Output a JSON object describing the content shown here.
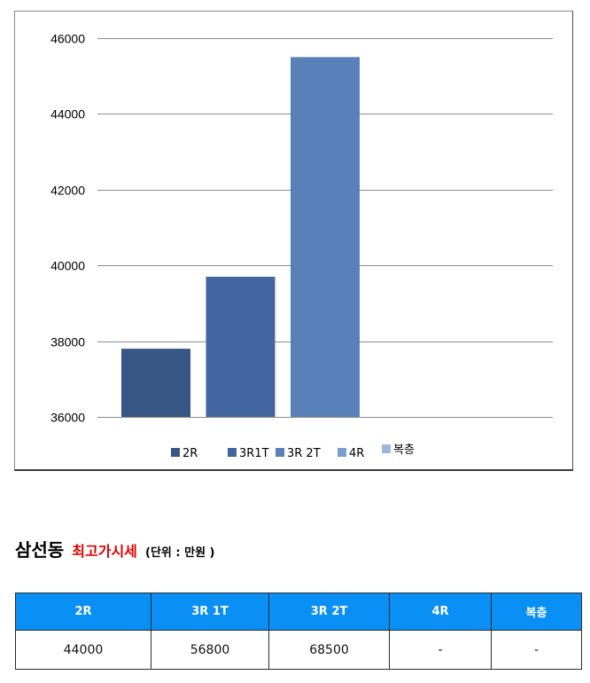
{
  "chart_data": {
    "type": "bar",
    "categories": [
      "2R",
      "3R1T",
      "3R 2T",
      "4R",
      "복층"
    ],
    "series": [
      {
        "name": "2R",
        "value": 37800,
        "color": "#375685"
      },
      {
        "name": "3R1T",
        "value": 39700,
        "color": "#4466a0"
      },
      {
        "name": "3R 2T",
        "value": 45500,
        "color": "#5a80ba"
      },
      {
        "name": "4R",
        "value": null,
        "color": "#7c9dcd"
      },
      {
        "name": "복층",
        "value": null,
        "color": "#9fb5da"
      }
    ],
    "ylim": [
      36000,
      46000
    ],
    "yticks": [
      36000,
      38000,
      40000,
      42000,
      44000,
      46000
    ],
    "grid": true,
    "legend": "bottom"
  },
  "heading": {
    "title": "삼선동",
    "subtitle": "최고가시세",
    "unit": "(단위 : 만원 )"
  },
  "table": {
    "headers": [
      "2R",
      "3R 1T",
      "3R 2T",
      "4R",
      "복층"
    ],
    "row": [
      "44000",
      "56800",
      "68500",
      "-",
      "-"
    ]
  },
  "colors": {
    "table_header_bg": "#0a8ff5",
    "table_header_text": "#ffffff",
    "subtitle": "#e00000"
  }
}
